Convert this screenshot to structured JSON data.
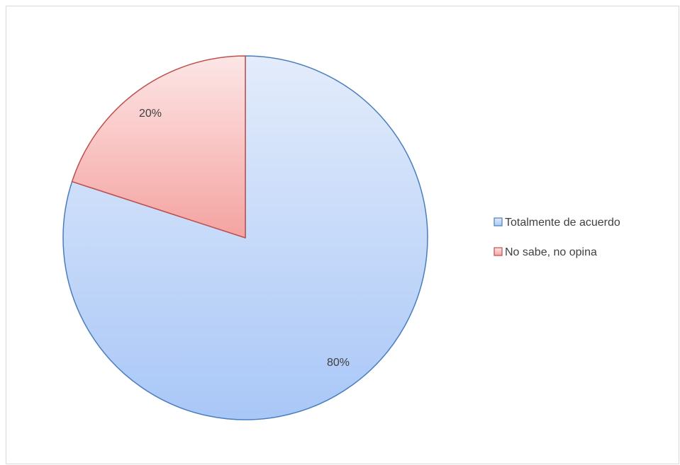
{
  "chart_data": {
    "type": "pie",
    "title": "",
    "slices": [
      {
        "label": "Totalmente de acuerdo",
        "value": 80,
        "display": "80%"
      },
      {
        "label": "No sabe, no opina",
        "value": 20,
        "display": "20%"
      }
    ],
    "start_angle": "12 o'clock",
    "direction": "clockwise",
    "legend_position": "right",
    "colors": {
      "Totalmente de acuerdo": {
        "fill_top": "#e3ecfb",
        "fill_bottom": "#a9c7f7",
        "stroke": "#4a7ebb"
      },
      "No sabe, no opina": {
        "fill_top": "#fde6e6",
        "fill_bottom": "#f4a3a0",
        "stroke": "#c0504d"
      }
    }
  }
}
